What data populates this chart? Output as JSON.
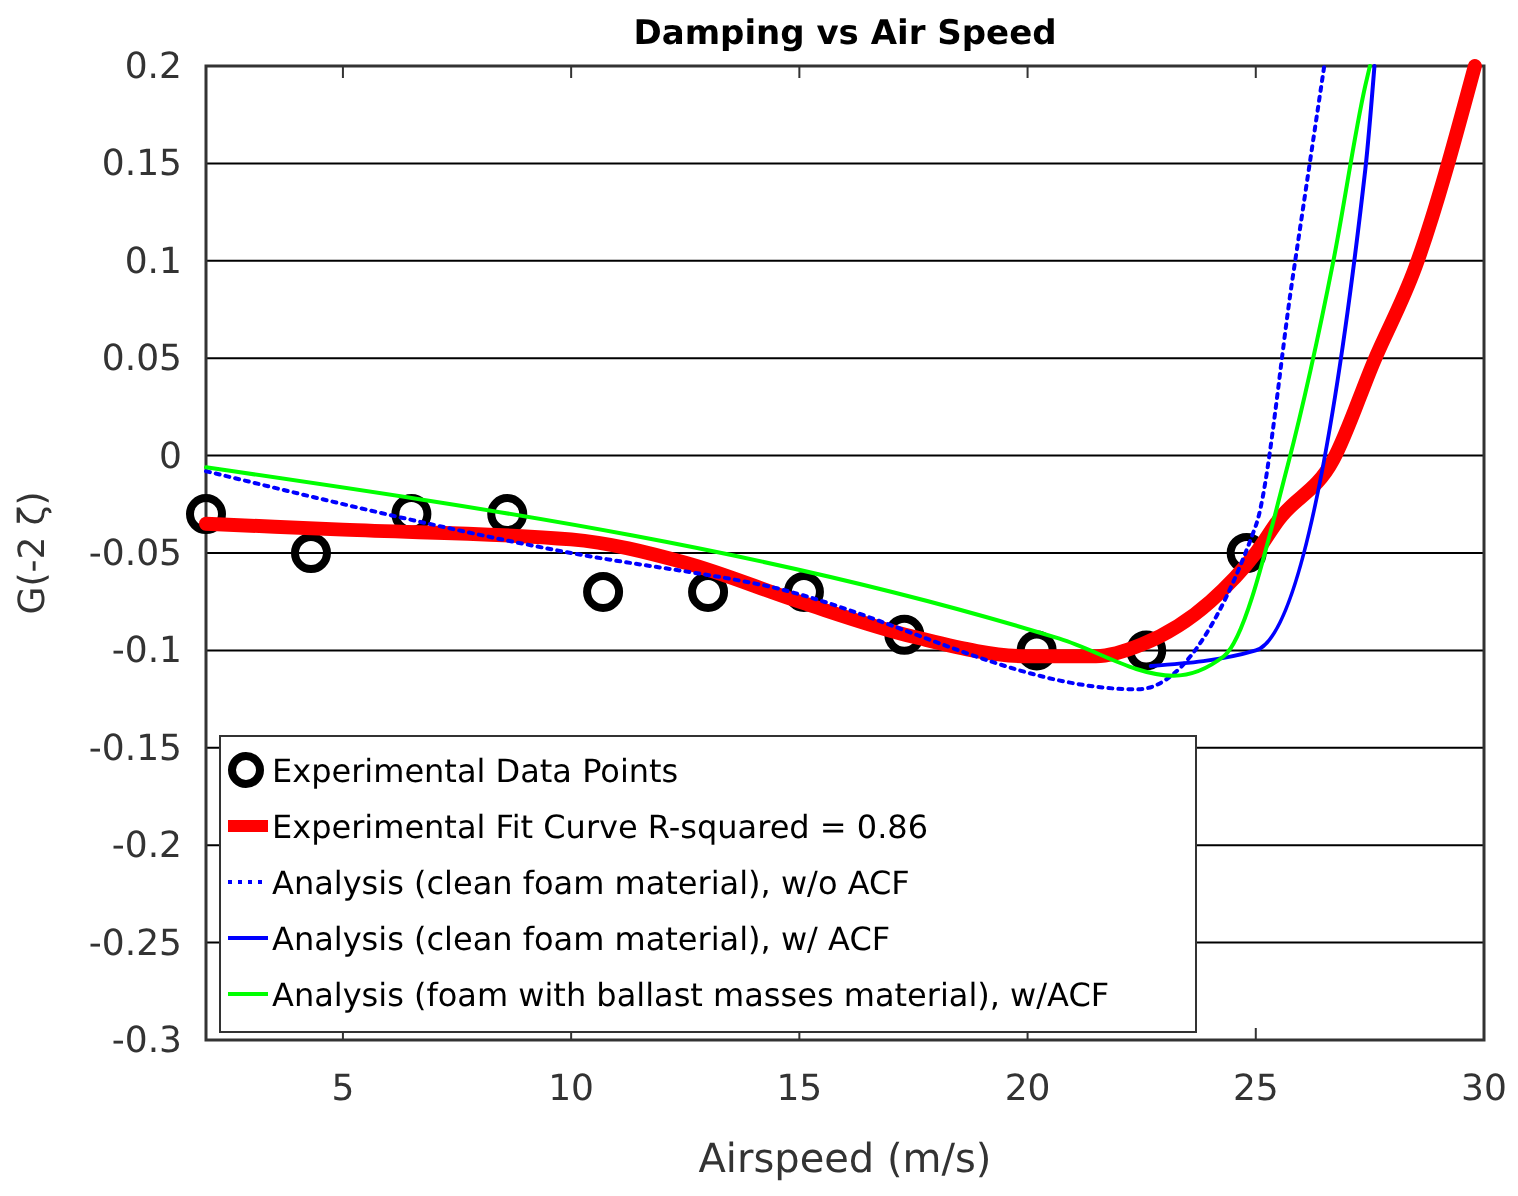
{
  "chart_data": {
    "type": "line",
    "title": "Damping vs Air Speed",
    "xlabel": "Airspeed (m/s)",
    "ylabel": "G(-2 ζ)",
    "xlim": [
      2,
      30
    ],
    "xticks": [
      5,
      10,
      15,
      20,
      25,
      30
    ],
    "ylim": [
      -0.3,
      0.2
    ],
    "yticks": [
      -0.3,
      -0.25,
      -0.2,
      -0.15,
      -0.1,
      -0.05,
      0,
      0.05,
      0.1,
      0.15,
      0.2
    ],
    "grid": "y",
    "legend": "bottom left",
    "series": [
      {
        "name": "Experimental Data Points",
        "type": "scatter",
        "marker": "circle",
        "color": "#000000",
        "x": [
          2,
          4.3,
          6.5,
          8.6,
          10.7,
          13,
          15.1,
          17.3,
          20.2,
          22.6,
          24.8
        ],
        "values": [
          -0.03,
          -0.05,
          -0.03,
          -0.03,
          -0.07,
          -0.07,
          -0.07,
          -0.092,
          -0.1,
          -0.1,
          -0.05
        ]
      },
      {
        "name": "Experimental Fit Curve R-squared = 0.86",
        "color": "#ff0000",
        "line_style": "solid",
        "x": [
          2,
          5,
          10,
          12.5,
          15,
          17.5,
          20,
          21.5,
          22.5,
          24,
          25,
          25.5,
          26.7,
          27.6,
          28.5,
          29.8
        ],
        "values": [
          -0.035,
          -0.038,
          -0.043,
          -0.055,
          -0.075,
          -0.093,
          -0.103,
          -0.103,
          -0.097,
          -0.075,
          -0.05,
          -0.033,
          -0.002,
          0.049,
          0.097,
          0.2
        ]
      },
      {
        "name": "Analysis (clean foam material), w/o ACF",
        "color": "#0000ff",
        "line_style": "dotted",
        "x": [
          2,
          10,
          14.1,
          22.4,
          25,
          25.8,
          26.5
        ],
        "values": [
          -0.008,
          -0.05,
          -0.066,
          -0.12,
          -0.036,
          0.09,
          0.2
        ]
      },
      {
        "name": "Analysis (clean foam material), w/ ACF",
        "color": "#0000ff",
        "line_style": "solid",
        "x": [
          22.7,
          25,
          27.4,
          27.6
        ],
        "values": [
          -0.108,
          -0.1,
          0.147,
          0.2
        ]
      },
      {
        "name": "Analysis (foam with ballast masses material), w/ACF",
        "color": "#00ff00",
        "line_style": "solid",
        "x": [
          2,
          20.7,
          23.2,
          24.3,
          25.7,
          26.7,
          27.4,
          27.5
        ],
        "values": [
          -0.006,
          -0.094,
          -0.113,
          -0.103,
          -0.005,
          0.1,
          0.19,
          0.2
        ]
      }
    ]
  }
}
